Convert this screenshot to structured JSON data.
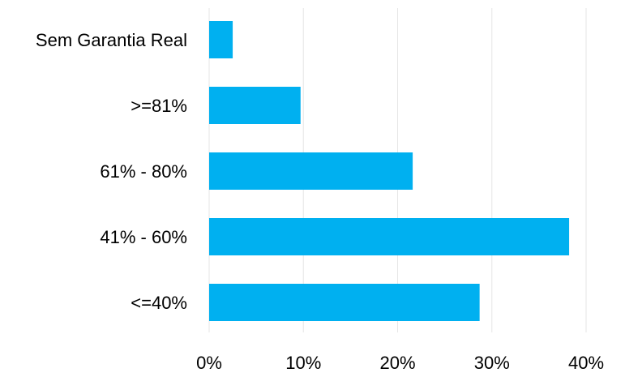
{
  "chart_data": {
    "type": "bar",
    "orientation": "horizontal",
    "categories": [
      "Sem Garantia Real",
      ">=81%",
      "61% - 80%",
      "41% - 60%",
      "<=40%"
    ],
    "values": [
      2.5,
      9.7,
      21.6,
      38.2,
      28.7
    ],
    "value_unit": "%",
    "xlim": [
      0,
      40
    ],
    "xticks": [
      "0%",
      "10%",
      "20%",
      "30%",
      "40%"
    ],
    "grid": "vertical",
    "legend": "none",
    "colors": {
      "bar": "#00B0F0",
      "grid": "#E6E6E6"
    }
  }
}
